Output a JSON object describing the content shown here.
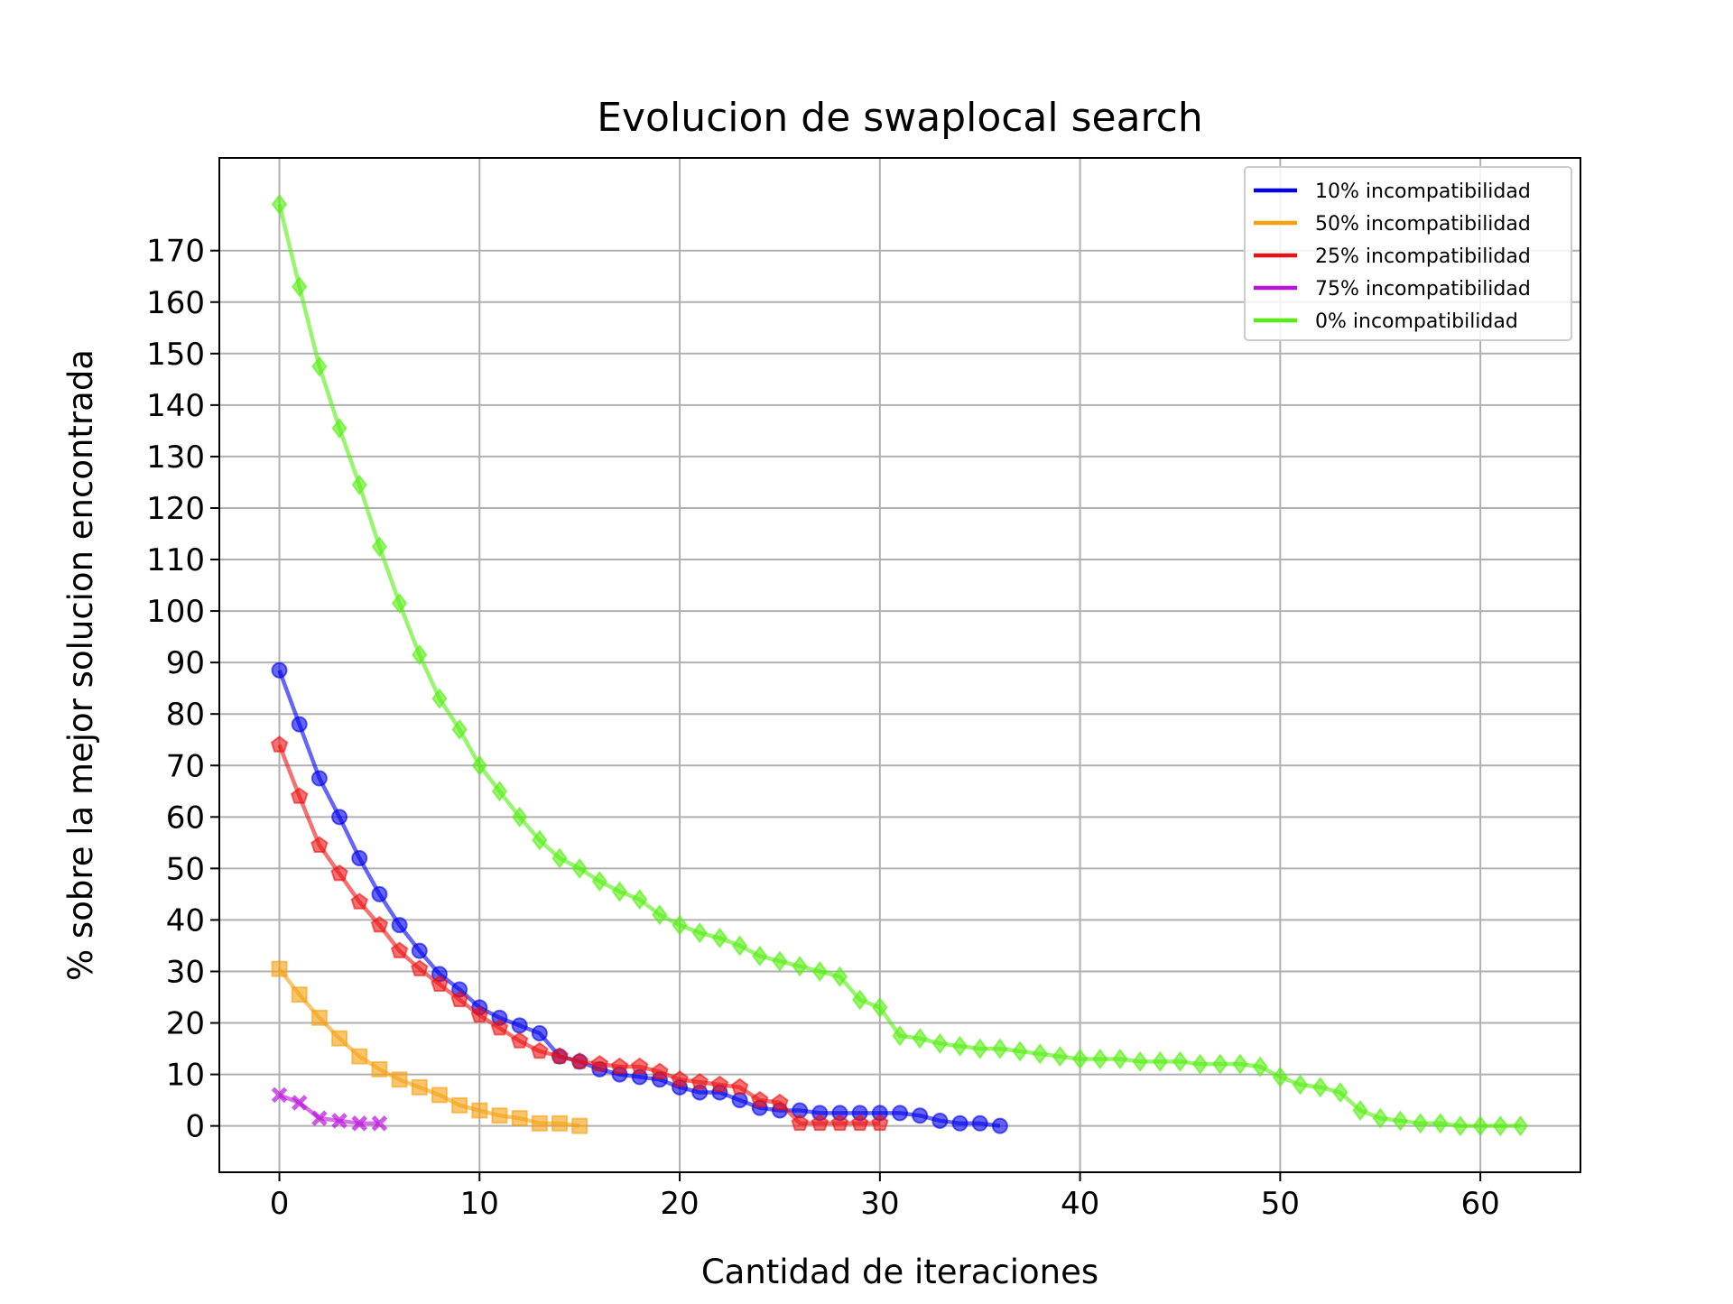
{
  "chart_data": {
    "type": "line",
    "title": "Evolucion de swaplocal search",
    "xlabel": "Cantidad de iteraciones",
    "ylabel": "% sobre la mejor solucion encontrada",
    "xlim": [
      -3,
      65
    ],
    "ylim": [
      -9,
      188
    ],
    "xticks": [
      0,
      10,
      20,
      30,
      40,
      50,
      60
    ],
    "yticks": [
      0,
      10,
      20,
      30,
      40,
      50,
      60,
      70,
      80,
      90,
      100,
      110,
      120,
      130,
      140,
      150,
      160,
      170
    ],
    "grid": true,
    "legend_position": "top-right",
    "series": [
      {
        "name": "10% incompatibilidad",
        "color": "#0000ee",
        "marker": "circle",
        "values": [
          88.5,
          78,
          67.5,
          60,
          52,
          45,
          39,
          34,
          29.5,
          26.5,
          23,
          21,
          19.5,
          18,
          13.5,
          12.5,
          11,
          10,
          9.5,
          9,
          7.5,
          6.5,
          6.5,
          5,
          3.5,
          3,
          3,
          2.5,
          2.5,
          2.5,
          2.5,
          2.5,
          2,
          1,
          0.5,
          0.5,
          0
        ]
      },
      {
        "name": "50% incompatibilidad",
        "color": "#f5a00f",
        "marker": "square",
        "values": [
          30.5,
          25.5,
          21,
          17,
          13.5,
          11,
          9,
          7.5,
          6,
          4,
          3,
          2,
          1.5,
          0.5,
          0.5,
          0
        ]
      },
      {
        "name": "25% incompatibilidad",
        "color": "#ee1111",
        "marker": "pentagon",
        "values": [
          74,
          64,
          54.5,
          49,
          43.5,
          39,
          34,
          30.5,
          27.5,
          24.5,
          21.5,
          19,
          16.5,
          14.5,
          13.5,
          12.5,
          12,
          11.5,
          11.5,
          10.5,
          9,
          8.5,
          8,
          7.5,
          5,
          4.5,
          0.5,
          0.5,
          0.5,
          0.5,
          0.5
        ]
      },
      {
        "name": "75% incompatibilidad",
        "color": "#bb11dd",
        "marker": "x",
        "values": [
          6,
          4.5,
          1.5,
          1,
          0.5,
          0.5
        ]
      },
      {
        "name": "0% incompatibilidad",
        "color": "#55ee11",
        "marker": "diamond",
        "values": [
          179,
          163,
          147.5,
          135.5,
          124.5,
          112.5,
          101.5,
          91.5,
          83,
          77,
          70,
          65,
          60,
          55.5,
          52,
          50,
          47.5,
          45.5,
          44,
          41,
          39,
          37.5,
          36.5,
          35,
          33,
          32,
          31,
          30,
          29,
          24.5,
          23,
          17.5,
          17,
          16,
          15.5,
          15,
          15,
          14.5,
          14,
          13.5,
          13,
          13,
          13,
          12.5,
          12.5,
          12.5,
          12,
          12,
          12,
          11.5,
          9.5,
          8,
          7.5,
          6.5,
          3,
          1.5,
          1,
          0.5,
          0.5,
          0,
          0,
          0,
          0
        ]
      }
    ]
  }
}
